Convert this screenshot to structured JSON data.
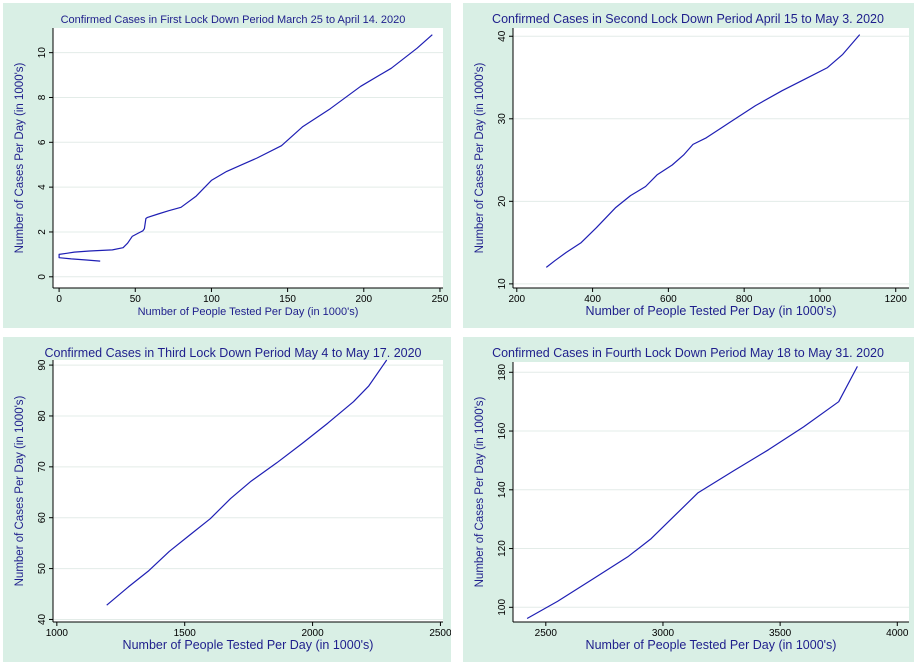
{
  "chart_data": [
    {
      "type": "line",
      "title": "Confirmed Cases in First Lock Down Period March 25 to April 14. 2020",
      "xlabel": "Number of People Tested Per Day (in 1000's)",
      "ylabel": "Number of Cases Per Day (in 1000's)",
      "xlim": [
        -4,
        252
      ],
      "ylim": [
        -0.5,
        11.1
      ],
      "xticks": [
        0,
        50,
        100,
        150,
        200,
        250
      ],
      "yticks": [
        0,
        2,
        4,
        6,
        8,
        10
      ],
      "grid": true,
      "line_color": "#1f1fb4",
      "series": [
        {
          "x": [
            27,
            18,
            8,
            0,
            0,
            5,
            10,
            20,
            35,
            42,
            45,
            48,
            52,
            55,
            56,
            57,
            58,
            65,
            72,
            80,
            90,
            100,
            110,
            120,
            130,
            146,
            160,
            178,
            198,
            218,
            235,
            245
          ],
          "y": [
            0.7,
            0.75,
            0.8,
            0.85,
            1.0,
            1.05,
            1.1,
            1.15,
            1.2,
            1.3,
            1.5,
            1.8,
            1.95,
            2.05,
            2.15,
            2.6,
            2.65,
            2.8,
            2.95,
            3.1,
            3.6,
            4.3,
            4.7,
            5.0,
            5.3,
            5.85,
            6.7,
            7.5,
            8.5,
            9.3,
            10.2,
            10.8
          ]
        }
      ]
    },
    {
      "type": "line",
      "title": "Confirmed Cases in Second Lock Down Period April 15 to May 3. 2020",
      "xlabel": "Number of People Tested Per Day (in 1000's)",
      "ylabel": "Number of Cases Per Day (in 1000's)",
      "xlim": [
        190,
        1235
      ],
      "ylim": [
        9.5,
        41
      ],
      "xticks": [
        200,
        400,
        600,
        800,
        1000,
        1200
      ],
      "yticks": [
        10,
        20,
        30,
        40
      ],
      "grid": true,
      "line_color": "#1f1fb4",
      "series": [
        {
          "x": [
            278,
            300,
            330,
            370,
            410,
            460,
            500,
            540,
            570,
            610,
            640,
            665,
            700,
            760,
            830,
            900,
            960,
            1020,
            1060,
            1105
          ],
          "y": [
            12,
            12.8,
            13.8,
            15,
            16.8,
            19.2,
            20.7,
            21.8,
            23.2,
            24.4,
            25.6,
            26.9,
            27.7,
            29.5,
            31.6,
            33.4,
            34.8,
            36.2,
            37.8,
            40.2
          ]
        }
      ]
    },
    {
      "type": "line",
      "title": "Confirmed Cases in Third Lock Down Period May 4 to May 17. 2020",
      "xlabel": "Number of People Tested Per Day (in 1000's)",
      "ylabel": "Number of Cases Per Day (in 1000's)",
      "xlim": [
        985,
        2510
      ],
      "ylim": [
        39.5,
        91
      ],
      "xticks": [
        1000,
        1500,
        2000,
        2500
      ],
      "yticks": [
        40,
        50,
        60,
        70,
        80,
        90
      ],
      "grid": true,
      "line_color": "#1f1fb4",
      "series": [
        {
          "x": [
            1195,
            1280,
            1360,
            1440,
            1520,
            1600,
            1680,
            1760,
            1860,
            1960,
            2060,
            2160,
            2220,
            2290
          ],
          "y": [
            42.8,
            46.4,
            49.6,
            53.4,
            56.6,
            59.8,
            63.8,
            67.2,
            70.8,
            74.6,
            78.6,
            82.8,
            85.9,
            91.0
          ]
        }
      ]
    },
    {
      "type": "line",
      "title": "Confirmed Cases in Fourth Lock Down Period May 18  to May 31. 2020",
      "xlabel": "Number of People Tested Per Day (in 1000's)",
      "ylabel": "Number of Cases Per Day (in 1000's)",
      "xlim": [
        2360,
        4050
      ],
      "ylim": [
        95,
        183.5
      ],
      "xticks": [
        2500,
        3000,
        3500,
        4000
      ],
      "yticks": [
        100,
        120,
        140,
        160,
        180
      ],
      "grid": true,
      "line_color": "#1f1fb4",
      "series": [
        {
          "x": [
            2420,
            2550,
            2700,
            2850,
            2950,
            3050,
            3150,
            3300,
            3450,
            3600,
            3750,
            3830
          ],
          "y": [
            96.2,
            102,
            109.6,
            117.2,
            123.4,
            131.2,
            139,
            146.4,
            153.6,
            161.4,
            170,
            182
          ]
        }
      ]
    }
  ]
}
